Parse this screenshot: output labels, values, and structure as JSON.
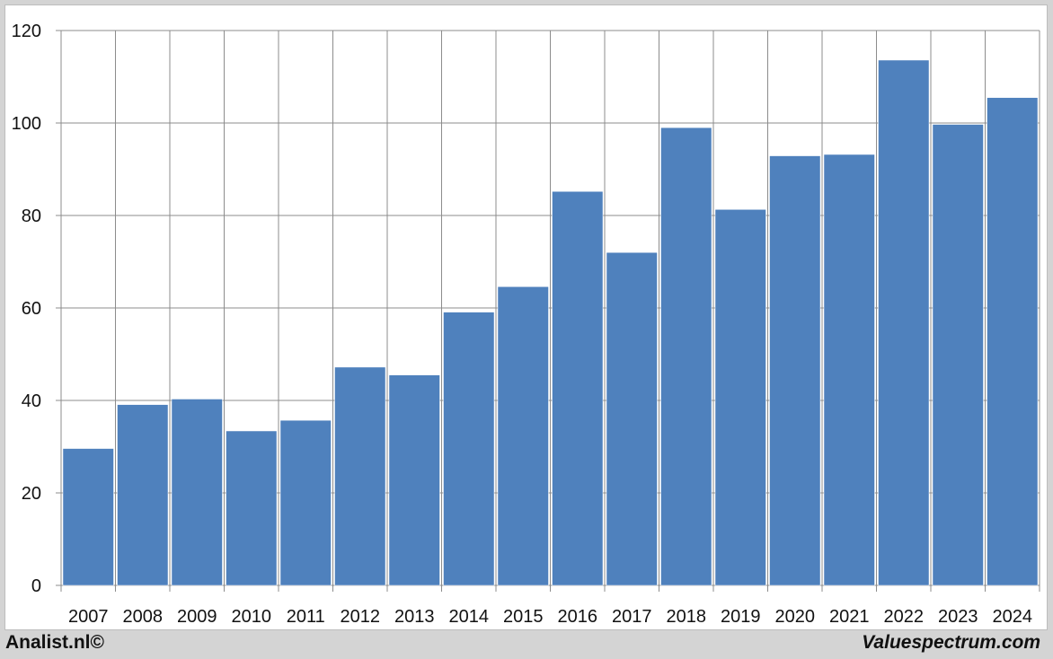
{
  "chart_data": {
    "type": "bar",
    "categories": [
      "2007",
      "2008",
      "2009",
      "2010",
      "2011",
      "2012",
      "2013",
      "2014",
      "2015",
      "2016",
      "2017",
      "2018",
      "2019",
      "2020",
      "2021",
      "2022",
      "2023",
      "2024"
    ],
    "values": [
      29.6,
      39.1,
      40.3,
      33.4,
      35.7,
      47.2,
      45.5,
      59.1,
      64.6,
      85.2,
      72.0,
      99.0,
      81.3,
      92.9,
      93.2,
      113.6,
      99.7,
      105.5
    ],
    "title": "",
    "xlabel": "",
    "ylabel": "",
    "ylim": [
      0,
      120
    ],
    "yticks": [
      0,
      20,
      40,
      60,
      80,
      100,
      120
    ],
    "grid": true,
    "bar_color": "#4f81bd"
  },
  "footer": {
    "left": "Analist.nl©",
    "right": "Valuespectrum.com"
  }
}
